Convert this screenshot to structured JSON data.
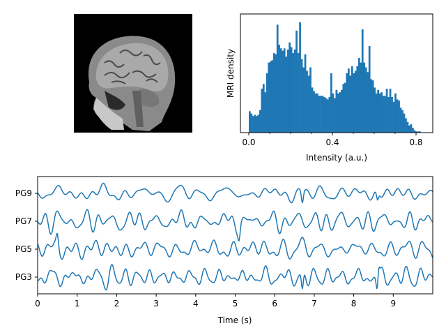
{
  "colors": {
    "series": "#1f77b4",
    "axis": "#000000",
    "background": "#ffffff"
  },
  "chart_data": [
    {
      "type": "image",
      "description_text": "",
      "axes_visible": false
    },
    {
      "type": "histogram",
      "xlabel": "Intensity (a.u.)",
      "ylabel": "MRI density",
      "xlim": [
        -0.04,
        0.88
      ],
      "ylim": [
        0,
        1.0
      ],
      "x_ticks": [
        0.0,
        0.4,
        0.8
      ],
      "x_tick_labels": [
        "0.0",
        "0.4",
        "0.8"
      ],
      "x_minor_ticks": [
        0.1,
        0.2,
        0.3,
        0.5,
        0.6,
        0.7
      ],
      "bin_width": 0.0083,
      "bin_start": 0.0,
      "values": [
        0.18,
        0.16,
        0.14,
        0.15,
        0.14,
        0.15,
        0.19,
        0.37,
        0.41,
        0.34,
        0.5,
        0.59,
        0.6,
        0.61,
        0.67,
        0.66,
        0.91,
        0.74,
        0.71,
        0.69,
        0.71,
        0.64,
        0.7,
        0.76,
        0.72,
        0.67,
        0.7,
        0.86,
        0.67,
        0.93,
        0.62,
        0.55,
        0.66,
        0.52,
        0.48,
        0.55,
        0.38,
        0.35,
        0.33,
        0.33,
        0.31,
        0.31,
        0.31,
        0.3,
        0.29,
        0.28,
        0.3,
        0.5,
        0.33,
        0.29,
        0.36,
        0.33,
        0.34,
        0.36,
        0.41,
        0.42,
        0.5,
        0.54,
        0.48,
        0.56,
        0.5,
        0.52,
        0.56,
        0.63,
        0.59,
        0.87,
        0.59,
        0.55,
        0.51,
        0.73,
        0.45,
        0.44,
        0.38,
        0.33,
        0.36,
        0.33,
        0.34,
        0.31,
        0.31,
        0.37,
        0.3,
        0.37,
        0.3,
        0.26,
        0.33,
        0.28,
        0.27,
        0.21,
        0.19,
        0.16,
        0.12,
        0.09,
        0.06,
        0.07,
        0.04,
        0.02,
        0.01,
        0.01,
        0.01
      ]
    },
    {
      "type": "line",
      "xlabel": "Time (s)",
      "ylabel": "",
      "xlim": [
        0,
        10
      ],
      "x_ticks": [
        0,
        1,
        2,
        3,
        4,
        5,
        6,
        7,
        8,
        9
      ],
      "x_tick_labels": [
        "0",
        "1",
        "2",
        "3",
        "4",
        "5",
        "6",
        "7",
        "8",
        "9"
      ],
      "channel_labels": [
        "PG9",
        "PG7",
        "PG5",
        "PG3"
      ],
      "series": [
        {
          "name": "PG9",
          "offset": 3,
          "seed": 11,
          "amplitude": 0.28,
          "spikes": [
            {
              "t": 6.7,
              "a": -0.45
            },
            {
              "t": 8.6,
              "a": -0.3
            }
          ]
        },
        {
          "name": "PG7",
          "offset": 2,
          "seed": 23,
          "amplitude": 0.3,
          "spikes": [
            {
              "t": 5.1,
              "a": -0.35
            }
          ]
        },
        {
          "name": "PG5",
          "offset": 1,
          "seed": 37,
          "amplitude": 0.36,
          "spikes": [
            {
              "t": 0.5,
              "a": 0.35
            }
          ]
        },
        {
          "name": "PG3",
          "offset": 0,
          "seed": 51,
          "amplitude": 0.3,
          "spikes": [
            {
              "t": 6.7,
              "a": -0.65
            },
            {
              "t": 8.6,
              "a": -0.75
            },
            {
              "t": 8.62,
              "a": 0.6
            }
          ]
        }
      ]
    }
  ]
}
